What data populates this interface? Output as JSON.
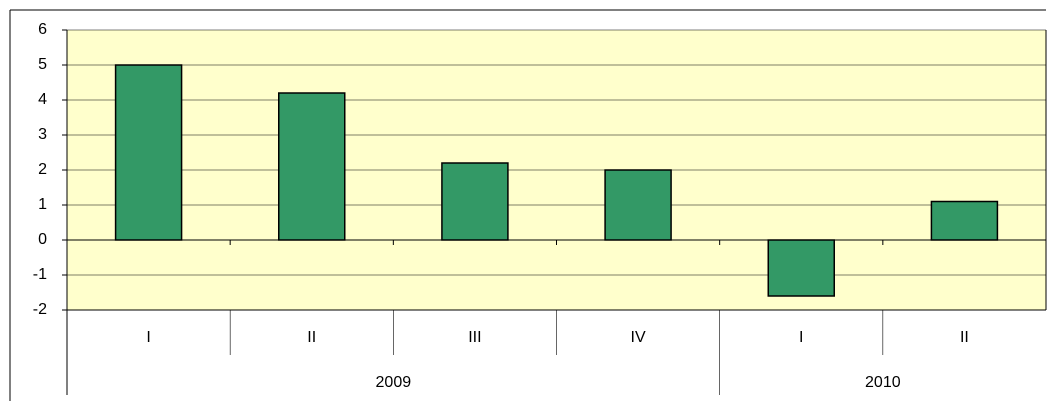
{
  "chart_data": {
    "type": "bar",
    "groups": [
      {
        "name": "2009",
        "categories": [
          "I",
          "II",
          "III",
          "IV"
        ]
      },
      {
        "name": "2010",
        "categories": [
          "I",
          "II"
        ]
      }
    ],
    "values": [
      5,
      4.2,
      2.2,
      2,
      -1.6,
      1.1
    ],
    "color": "#339966",
    "ylim": [
      -2,
      6
    ],
    "yticks": [
      -2,
      -1,
      0,
      1,
      2,
      3,
      4,
      5,
      6
    ],
    "grid": true
  }
}
